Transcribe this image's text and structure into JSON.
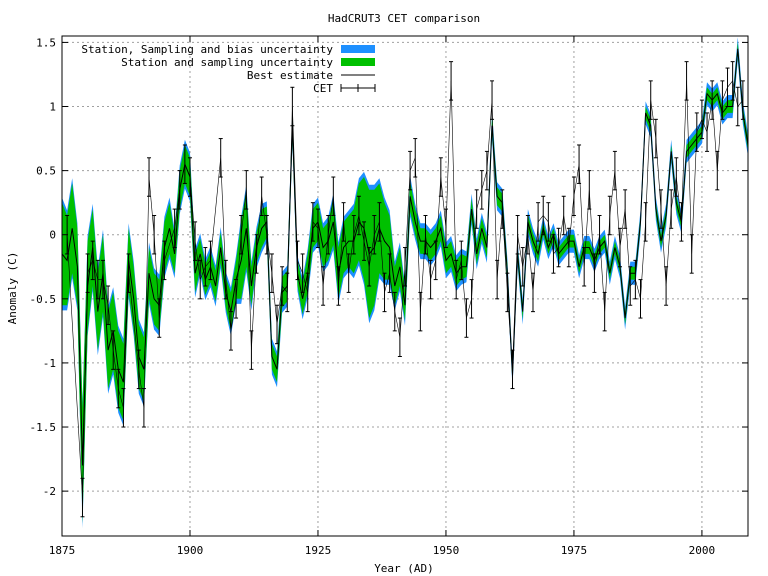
{
  "chart_data": {
    "type": "line",
    "title": "HadCRUT3 CET comparison",
    "xlabel": "Year (AD)",
    "ylabel": "Anomaly (C)",
    "xlim": [
      1875,
      2009
    ],
    "ylim": [
      -2.35,
      1.55
    ],
    "x_ticks": [
      1875,
      1900,
      1925,
      1950,
      1975,
      2000
    ],
    "y_ticks": [
      1.5,
      1,
      0.5,
      0,
      -0.5,
      -1,
      -1.5,
      -2
    ],
    "y_tick_labels": [
      "1.5",
      "1",
      "0.5",
      "0",
      "-0.5",
      "-1",
      "-1.5",
      "-2"
    ],
    "grid": true,
    "legend_position": "top-left",
    "colors": {
      "bias_band": "#1e90ff",
      "sampling_band": "#00c000",
      "best_estimate": "#000000",
      "cet": "#000000"
    },
    "legend": [
      {
        "key": "bias",
        "label": "Station, Sampling and bias uncertainty"
      },
      {
        "key": "sampling",
        "label": "Station and sampling uncertainty"
      },
      {
        "key": "best",
        "label": "Best estimate"
      },
      {
        "key": "cet",
        "label": "CET"
      }
    ],
    "series": [
      {
        "name": "Best estimate",
        "x": [
          1875,
          1876,
          1877,
          1878,
          1879,
          1880,
          1881,
          1882,
          1883,
          1884,
          1885,
          1886,
          1887,
          1888,
          1889,
          1890,
          1891,
          1892,
          1893,
          1894,
          1895,
          1896,
          1897,
          1898,
          1899,
          1900,
          1901,
          1902,
          1903,
          1904,
          1905,
          1906,
          1907,
          1908,
          1909,
          1910,
          1911,
          1912,
          1913,
          1914,
          1915,
          1916,
          1917,
          1918,
          1919,
          1920,
          1921,
          1922,
          1923,
          1924,
          1925,
          1926,
          1927,
          1928,
          1929,
          1930,
          1931,
          1932,
          1933,
          1934,
          1935,
          1936,
          1937,
          1938,
          1939,
          1940,
          1941,
          1942,
          1943,
          1944,
          1945,
          1946,
          1947,
          1948,
          1949,
          1950,
          1951,
          1952,
          1953,
          1954,
          1955,
          1956,
          1957,
          1958,
          1959,
          1960,
          1961,
          1962,
          1963,
          1964,
          1965,
          1966,
          1967,
          1968,
          1969,
          1970,
          1971,
          1972,
          1973,
          1974,
          1975,
          1976,
          1977,
          1978,
          1979,
          1980,
          1981,
          1982,
          1983,
          1984,
          1985,
          1986,
          1987,
          1988,
          1989,
          1990,
          1991,
          1992,
          1993,
          1994,
          1995,
          1996,
          1997,
          1998,
          1999,
          2000,
          2001,
          2002,
          2003,
          2004,
          2005,
          2006,
          2007,
          2008,
          2009
        ],
        "values": [
          -0.15,
          -0.2,
          0.05,
          -0.25,
          -1.8,
          -0.4,
          -0.1,
          -0.6,
          -0.3,
          -0.9,
          -0.75,
          -1.05,
          -1.15,
          -0.2,
          -0.5,
          -0.95,
          -1.05,
          -0.3,
          -0.5,
          -0.55,
          -0.1,
          0.05,
          -0.15,
          0.35,
          0.55,
          0.45,
          -0.3,
          -0.15,
          -0.35,
          -0.25,
          -0.4,
          -0.1,
          -0.45,
          -0.6,
          -0.35,
          -0.2,
          0.05,
          -0.4,
          -0.1,
          0.05,
          0.1,
          -0.95,
          -1.05,
          -0.45,
          -0.4,
          0.85,
          -0.3,
          -0.5,
          -0.3,
          0.05,
          0.1,
          -0.1,
          -0.05,
          0.1,
          -0.3,
          -0.1,
          -0.05,
          -0.05,
          0.1,
          0.05,
          -0.15,
          -0.1,
          0.05,
          -0.05,
          -0.1,
          -0.4,
          -0.25,
          -0.55,
          0.3,
          0.1,
          -0.05,
          -0.05,
          -0.1,
          -0.05,
          0.05,
          -0.2,
          -0.15,
          -0.3,
          -0.25,
          -0.25,
          0.2,
          -0.15,
          0.05,
          -0.1,
          0.85,
          0.3,
          0.25,
          -0.3,
          -1.1,
          -0.15,
          -0.6,
          0.1,
          -0.05,
          -0.15,
          0.05,
          -0.1,
          0,
          -0.15,
          -0.1,
          -0.05,
          -0.05,
          -0.25,
          -0.1,
          -0.1,
          -0.2,
          -0.1,
          -0.05,
          -0.3,
          -0.1,
          -0.25,
          -0.65,
          -0.3,
          -0.3,
          0.1,
          0.95,
          0.85,
          0.2,
          -0.05,
          0.15,
          0.65,
          0.25,
          0.1,
          0.65,
          0.7,
          0.75,
          0.8,
          1.1,
          1.05,
          1.1,
          0.95,
          1.0,
          1.0,
          1.45,
          0.95,
          0.7
        ]
      },
      {
        "name": "CET",
        "x": [
          1876,
          1879,
          1880,
          1881,
          1882,
          1883,
          1884,
          1885,
          1886,
          1887,
          1888,
          1890,
          1891,
          1892,
          1893,
          1894,
          1895,
          1897,
          1898,
          1899,
          1900,
          1901,
          1902,
          1903,
          1904,
          1906,
          1907,
          1908,
          1909,
          1910,
          1911,
          1912,
          1913,
          1914,
          1915,
          1916,
          1917,
          1918,
          1919,
          1920,
          1921,
          1922,
          1923,
          1924,
          1925,
          1926,
          1927,
          1928,
          1929,
          1930,
          1931,
          1932,
          1933,
          1934,
          1935,
          1936,
          1937,
          1938,
          1939,
          1940,
          1941,
          1942,
          1943,
          1944,
          1945,
          1946,
          1947,
          1948,
          1949,
          1950,
          1951,
          1952,
          1953,
          1954,
          1955,
          1956,
          1957,
          1958,
          1959,
          1960,
          1961,
          1962,
          1963,
          1964,
          1965,
          1966,
          1967,
          1968,
          1969,
          1970,
          1971,
          1972,
          1973,
          1974,
          1975,
          1976,
          1977,
          1978,
          1979,
          1980,
          1981,
          1982,
          1983,
          1984,
          1985,
          1986,
          1987,
          1988,
          1989,
          1990,
          1991,
          1992,
          1993,
          1994,
          1995,
          1996,
          1997,
          1998,
          1999,
          2000,
          2001,
          2002,
          2003,
          2004,
          2005,
          2006,
          2007,
          2008
        ],
        "values": [
          0.0,
          -2.05,
          -0.3,
          -0.2,
          -0.35,
          -0.35,
          -0.55,
          -0.9,
          -1.2,
          -1.35,
          -0.3,
          -1.05,
          -1.35,
          0.45,
          0.0,
          -0.65,
          -0.2,
          0.05,
          0.35,
          0.55,
          0.45,
          -0.05,
          -0.35,
          -0.25,
          -0.2,
          0.6,
          -0.35,
          -0.75,
          -0.5,
          0.0,
          0.35,
          -0.9,
          -0.15,
          0.3,
          0.0,
          -0.3,
          -0.7,
          -0.4,
          -0.45,
          1.0,
          -0.2,
          -0.3,
          -0.45,
          0.1,
          0.05,
          -0.4,
          0.0,
          0.3,
          -0.4,
          0.1,
          -0.3,
          0.0,
          0.15,
          -0.05,
          -0.25,
          0.0,
          0.1,
          -0.45,
          -0.3,
          -0.6,
          -0.8,
          -0.25,
          0.5,
          0.6,
          -0.6,
          0.0,
          -0.35,
          -0.2,
          0.45,
          0.05,
          1.2,
          -0.35,
          -0.2,
          -0.65,
          -0.5,
          0.2,
          0.35,
          0.5,
          1.05,
          -0.35,
          0.2,
          -0.45,
          -1.05,
          0.0,
          -0.25,
          0.0,
          -0.45,
          0.1,
          0.15,
          0.1,
          -0.15,
          -0.1,
          0.15,
          -0.1,
          0.3,
          0.55,
          -0.25,
          0.35,
          -0.3,
          0.0,
          -0.6,
          0.15,
          0.5,
          -0.1,
          0.2,
          -0.4,
          -0.35,
          -0.5,
          0.1,
          1.05,
          0.75,
          0.2,
          -0.4,
          0.2,
          0.45,
          0.1,
          1.2,
          -0.15,
          0.8,
          0.9,
          0.8,
          1.05,
          0.5,
          1.05,
          1.15,
          1.2,
          1.0,
          1.05
        ]
      }
    ],
    "uncertainty": {
      "sampling_halfwidth": [
        0.4,
        0.35,
        0.35,
        0.3,
        0.45,
        0.35,
        0.3,
        0.3,
        0.3,
        0.3,
        0.3,
        0.3,
        0.3,
        0.25,
        0.25,
        0.25,
        0.25,
        0.2,
        0.2,
        0.2,
        0.2,
        0.2,
        0.15,
        0.15,
        0.15,
        0.15,
        0.15,
        0.12,
        0.12,
        0.12,
        0.12,
        0.12,
        0.12,
        0.15,
        0.15,
        0.3,
        0.3,
        0.15,
        0.12,
        0.15,
        0.12,
        0.1,
        0.1,
        0.12,
        0.12,
        0.1,
        0.1,
        0.12,
        0.15,
        0.15,
        0.15,
        0.15,
        0.15,
        0.18,
        0.2,
        0.2,
        0.2,
        0.25,
        0.3,
        0.4,
        0.5,
        0.45,
        0.35,
        0.3,
        0.25,
        0.15,
        0.15,
        0.12,
        0.12,
        0.1,
        0.1,
        0.1,
        0.1,
        0.1,
        0.1,
        0.1,
        0.1,
        0.1,
        0.1,
        0.08,
        0.08,
        0.08,
        0.08,
        0.08,
        0.07,
        0.07,
        0.07,
        0.07,
        0.06,
        0.06,
        0.06,
        0.06,
        0.06,
        0.06,
        0.05,
        0.05,
        0.05,
        0.05,
        0.05,
        0.05,
        0.05,
        0.05,
        0.05,
        0.05,
        0.05,
        0.05,
        0.05,
        0.05,
        0.05,
        0.05,
        0.05,
        0.05,
        0.05,
        0.05,
        0.05,
        0.05,
        0.05,
        0.05,
        0.05,
        0.05,
        0.05,
        0.05,
        0.05,
        0.05,
        0.05,
        0.05,
        0.05,
        0.05,
        0.05,
        0.05,
        0.05,
        0.05,
        0.05,
        0.05,
        0.05
      ],
      "bias_extra": 0.04,
      "cet_error_halfwidth": 0.15
    }
  }
}
